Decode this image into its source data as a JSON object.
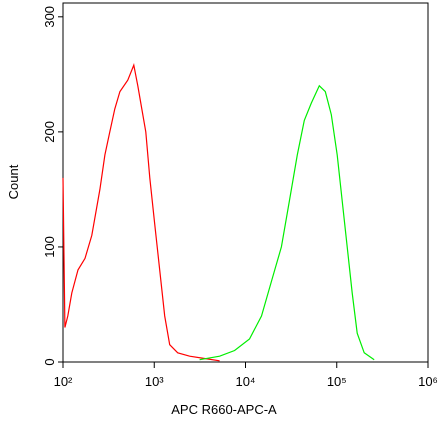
{
  "chart_data": {
    "type": "line",
    "x_label": "APC R660-APC-A",
    "y_label": "Count",
    "xscale": "log",
    "xlim": [
      100,
      1000000
    ],
    "xticks": [
      {
        "value": 100,
        "label": "10²"
      },
      {
        "value": 1000,
        "label": "10³"
      },
      {
        "value": 10000,
        "label": "10⁴"
      },
      {
        "value": 100000,
        "label": "10⁵"
      },
      {
        "value": 1000000,
        "label": "10⁶"
      }
    ],
    "ylim": [
      0,
      312
    ],
    "yticks": [
      0,
      100,
      200,
      300
    ],
    "series": [
      {
        "color": "#ff0000",
        "x": [
          100,
          105,
          113,
          125,
          146,
          174,
          207,
          254,
          288,
          326,
          370,
          420,
          513,
          597,
          660,
          730,
          807,
          893,
          1012,
          1148,
          1303,
          1477,
          1805,
          2445,
          3565,
          5200
        ],
        "values": [
          160,
          30,
          40,
          60,
          80,
          90,
          110,
          150,
          180,
          200,
          220,
          235,
          245,
          258,
          240,
          220,
          200,
          160,
          120,
          80,
          40,
          15,
          8,
          5,
          3,
          1
        ]
      },
      {
        "color": "#00ee00",
        "x": [
          3141,
          5200,
          7590,
          11060,
          14970,
          19240,
          24740,
          30240,
          37000,
          44150,
          52650,
          64360,
          74870,
          87090,
          101200,
          114700,
          130200,
          147600,
          167500,
          199800,
          257000
        ],
        "values": [
          2,
          5,
          10,
          20,
          40,
          70,
          100,
          140,
          180,
          210,
          225,
          240,
          235,
          215,
          180,
          140,
          100,
          60,
          25,
          8,
          2
        ]
      }
    ]
  }
}
